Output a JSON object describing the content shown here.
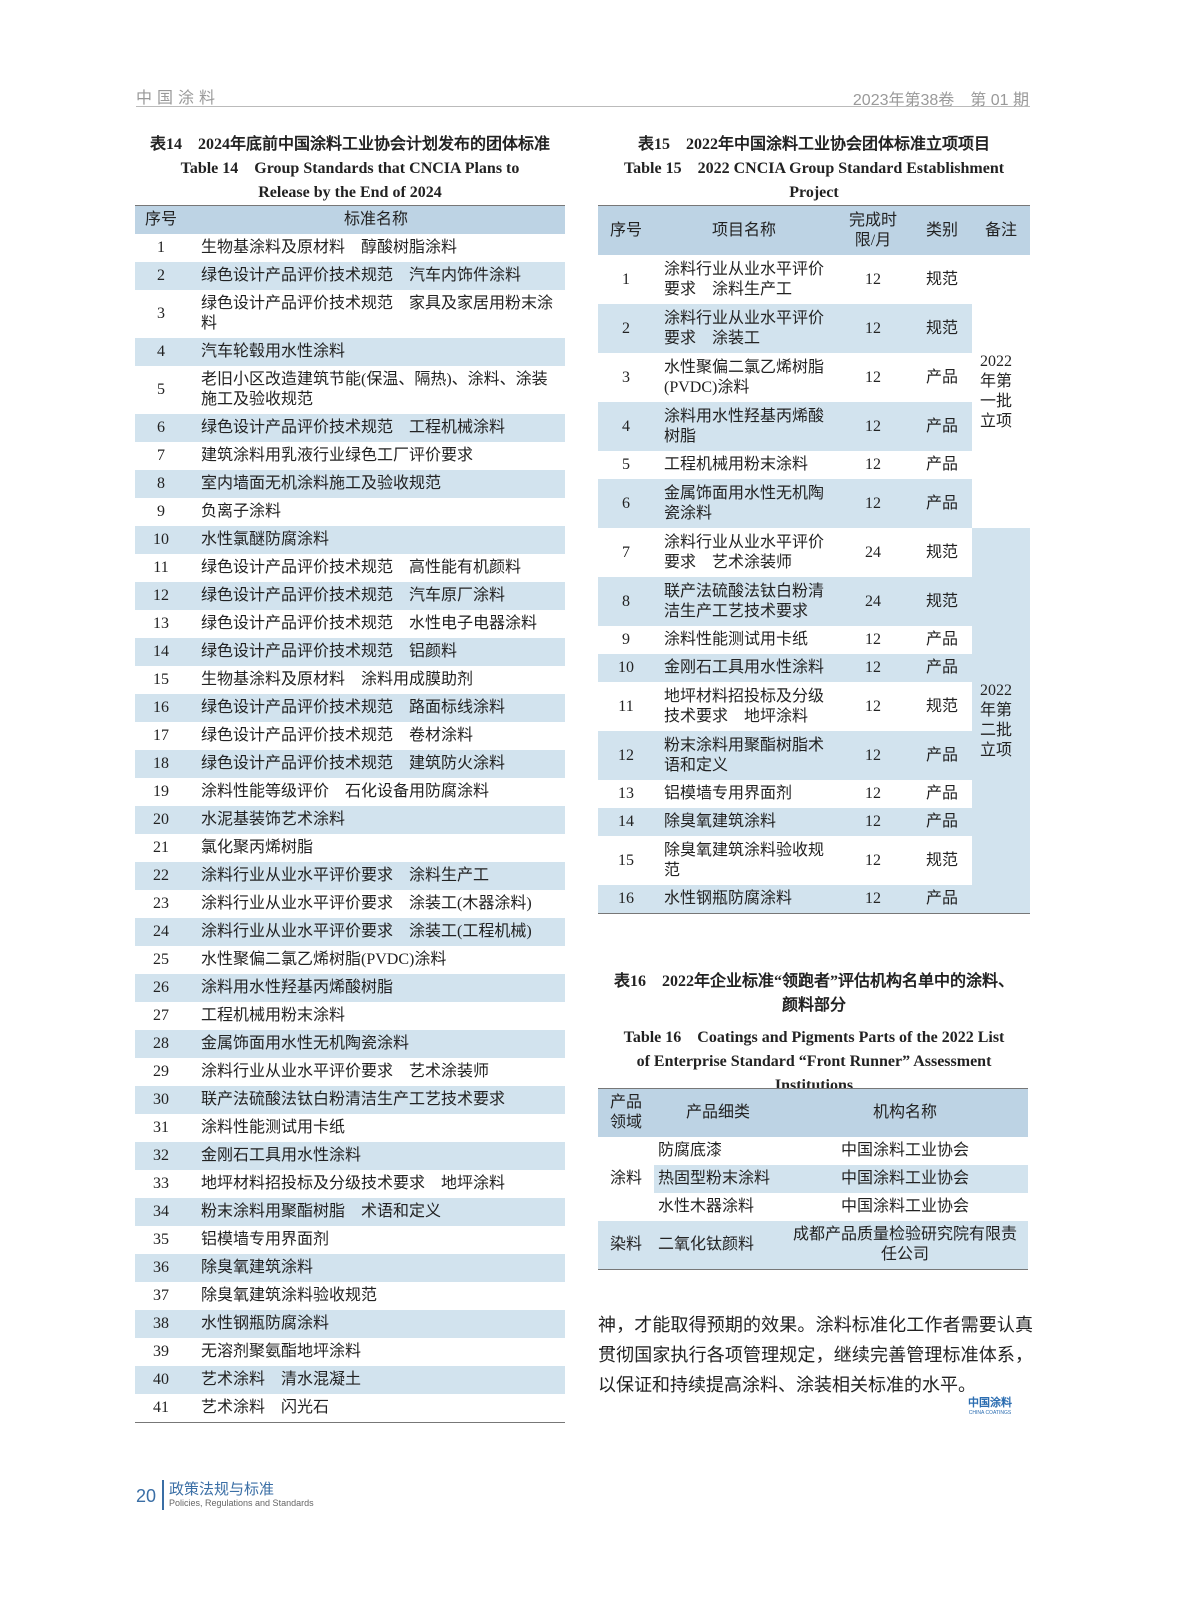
{
  "header": {
    "journal": "中国涂料",
    "issue": "2023年第38卷　第 01 期"
  },
  "table14": {
    "title_cn": "表14　2024年底前中国涂料工业协会计划发布的团体标准",
    "title_en": "Table 14　Group Standards that CNCIA Plans to Release by the End of 2024",
    "headers": [
      "序号",
      "标准名称"
    ],
    "rows": [
      [
        "1",
        "生物基涂料及原材料　醇酸树脂涂料"
      ],
      [
        "2",
        "绿色设计产品评价技术规范　汽车内饰件涂料"
      ],
      [
        "3",
        "绿色设计产品评价技术规范　家具及家居用粉末涂料"
      ],
      [
        "4",
        "汽车轮毂用水性涂料"
      ],
      [
        "5",
        "老旧小区改造建筑节能(保温、隔热)、涂料、涂装施工及验收规范"
      ],
      [
        "6",
        "绿色设计产品评价技术规范　工程机械涂料"
      ],
      [
        "7",
        "建筑涂料用乳液行业绿色工厂评价要求"
      ],
      [
        "8",
        "室内墙面无机涂料施工及验收规范"
      ],
      [
        "9",
        "负离子涂料"
      ],
      [
        "10",
        "水性氯醚防腐涂料"
      ],
      [
        "11",
        "绿色设计产品评价技术规范　高性能有机颜料"
      ],
      [
        "12",
        "绿色设计产品评价技术规范　汽车原厂涂料"
      ],
      [
        "13",
        "绿色设计产品评价技术规范　水性电子电器涂料"
      ],
      [
        "14",
        "绿色设计产品评价技术规范　铝颜料"
      ],
      [
        "15",
        "生物基涂料及原材料　涂料用成膜助剂"
      ],
      [
        "16",
        "绿色设计产品评价技术规范　路面标线涂料"
      ],
      [
        "17",
        "绿色设计产品评价技术规范　卷材涂料"
      ],
      [
        "18",
        "绿色设计产品评价技术规范　建筑防火涂料"
      ],
      [
        "19",
        "涂料性能等级评价　石化设备用防腐涂料"
      ],
      [
        "20",
        "水泥基装饰艺术涂料"
      ],
      [
        "21",
        "氯化聚丙烯树脂"
      ],
      [
        "22",
        "涂料行业从业水平评价要求　涂料生产工"
      ],
      [
        "23",
        "涂料行业从业水平评价要求　涂装工(木器涂料)"
      ],
      [
        "24",
        "涂料行业从业水平评价要求　涂装工(工程机械)"
      ],
      [
        "25",
        "水性聚偏二氯乙烯树脂(PVDC)涂料"
      ],
      [
        "26",
        "涂料用水性羟基丙烯酸树脂"
      ],
      [
        "27",
        "工程机械用粉末涂料"
      ],
      [
        "28",
        "金属饰面用水性无机陶瓷涂料"
      ],
      [
        "29",
        "涂料行业从业水平评价要求　艺术涂装师"
      ],
      [
        "30",
        "联产法硫酸法钛白粉清洁生产工艺技术要求"
      ],
      [
        "31",
        "涂料性能测试用卡纸"
      ],
      [
        "32",
        "金刚石工具用水性涂料"
      ],
      [
        "33",
        "地坪材料招投标及分级技术要求　地坪涂料"
      ],
      [
        "34",
        "粉末涂料用聚酯树脂　术语和定义"
      ],
      [
        "35",
        "铝模墙专用界面剂"
      ],
      [
        "36",
        "除臭氧建筑涂料"
      ],
      [
        "37",
        "除臭氧建筑涂料验收规范"
      ],
      [
        "38",
        "水性钢瓶防腐涂料"
      ],
      [
        "39",
        "无溶剂聚氨酯地坪涂料"
      ],
      [
        "40",
        "艺术涂料　清水混凝土"
      ],
      [
        "41",
        "艺术涂料　闪光石"
      ]
    ]
  },
  "table15": {
    "title_cn": "表15　2022年中国涂料工业协会团体标准立项项目",
    "title_en": "Table 15　2022 CNCIA Group Standard Establishment Project",
    "headers": [
      "序号",
      "项目名称",
      "完成时限/月",
      "类别",
      "备注"
    ],
    "rows": [
      [
        "1",
        "涂料行业从业水平评价要求　涂料生产工",
        "12",
        "规范"
      ],
      [
        "2",
        "涂料行业从业水平评价要求　涂装工",
        "12",
        "规范"
      ],
      [
        "3",
        "水性聚偏二氯乙烯树脂(PVDC)涂料",
        "12",
        "产品"
      ],
      [
        "4",
        "涂料用水性羟基丙烯酸树脂",
        "12",
        "产品"
      ],
      [
        "5",
        "工程机械用粉末涂料",
        "12",
        "产品"
      ],
      [
        "6",
        "金属饰面用水性无机陶瓷涂料",
        "12",
        "产品"
      ],
      [
        "7",
        "涂料行业从业水平评价要求　艺术涂装师",
        "24",
        "规范"
      ],
      [
        "8",
        "联产法硫酸法钛白粉清洁生产工艺技术要求",
        "24",
        "规范"
      ],
      [
        "9",
        "涂料性能测试用卡纸",
        "12",
        "产品"
      ],
      [
        "10",
        "金刚石工具用水性涂料",
        "12",
        "产品"
      ],
      [
        "11",
        "地坪材料招投标及分级技术要求　地坪涂料",
        "12",
        "规范"
      ],
      [
        "12",
        "粉末涂料用聚酯树脂术语和定义",
        "12",
        "产品"
      ],
      [
        "13",
        "铝模墙专用界面剂",
        "12",
        "产品"
      ],
      [
        "14",
        "除臭氧建筑涂料",
        "12",
        "产品"
      ],
      [
        "15",
        "除臭氧建筑涂料验收规范",
        "12",
        "规范"
      ],
      [
        "16",
        "水性钢瓶防腐涂料",
        "12",
        "产品"
      ]
    ],
    "remarks": [
      "2022年第一批立项",
      "2022年第二批立项"
    ]
  },
  "table16": {
    "title_cn": "表16　2022年企业标准“领跑者”评估机构名单中的涂料、颜料部分",
    "title_en": "Table 16　Coatings and Pigments Parts of the 2022 List of Enterprise Standard “Front Runner” Assessment Institutions",
    "headers": [
      "产品领域",
      "产品细类",
      "机构名称"
    ],
    "groups": [
      {
        "domain": "涂料",
        "rows": [
          [
            "防腐底漆",
            "中国涂料工业协会"
          ],
          [
            "热固型粉末涂料",
            "中国涂料工业协会"
          ],
          [
            "水性木器涂料",
            "中国涂料工业协会"
          ]
        ]
      },
      {
        "domain": "染料",
        "rows": [
          [
            "二氧化钛颜料",
            "成都产品质量检验研究院有限责任公司"
          ]
        ]
      }
    ]
  },
  "paragraph": "神，才能取得预期的效果。涂料标准化工作者需要认真贯彻国家执行各项管理规定，继续完善管理标准体系，以保证和持续提高涂料、涂装相关标准的水平。",
  "logo": {
    "cn": "中国涂料",
    "en": "CHINA COATINGS"
  },
  "footer": {
    "page": "20",
    "section_cn": "政策法规与标准",
    "section_en": "Policies, Regulations and Standards"
  },
  "colors": {
    "header_fill": "#bdd3e4",
    "stripe_fill": "#d2e3ee",
    "accent": "#3a6ea5"
  }
}
